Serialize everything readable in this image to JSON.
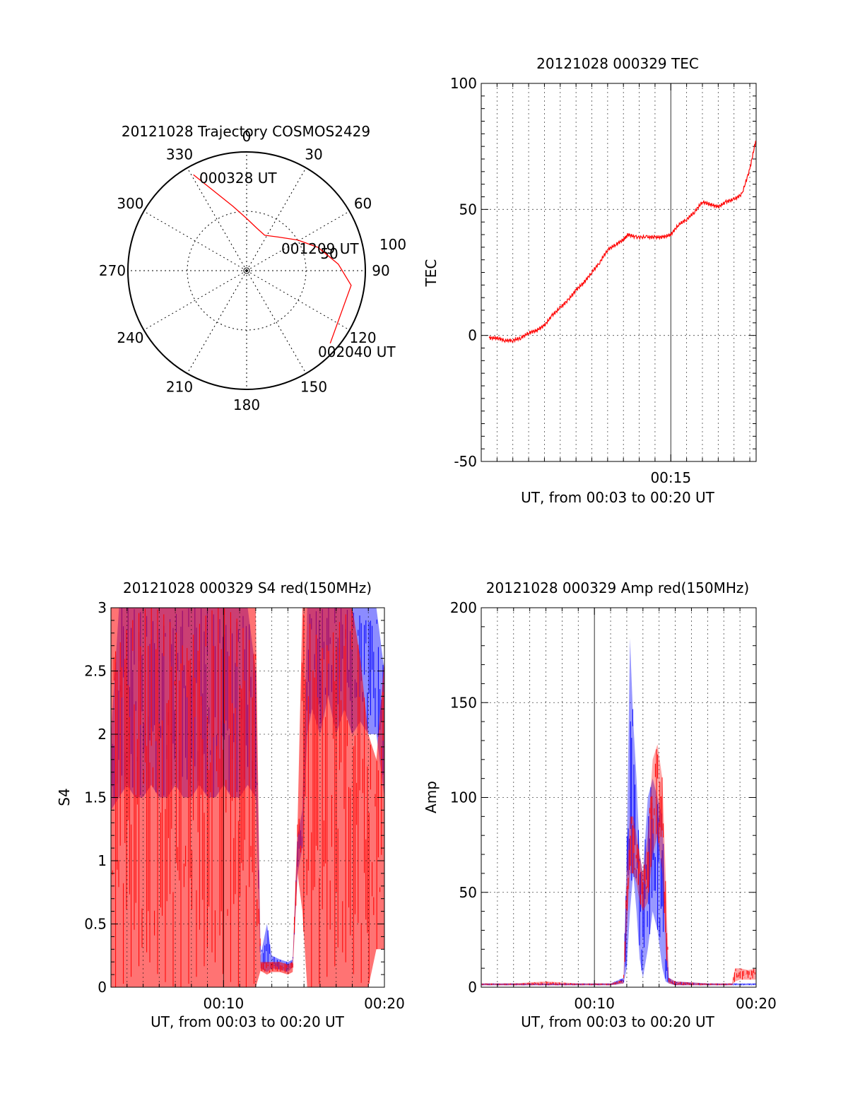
{
  "colors": {
    "primary": "#ff0000",
    "secondary": "#0000ff",
    "axis": "#000000",
    "grid": "#000000",
    "background": "#ffffff"
  },
  "chart_data": [
    {
      "id": "polar",
      "type": "scatter",
      "subtype": "polar-trajectory",
      "title": "20121028 Trajectory COSMOS2429",
      "azimuth_labels": [
        "0",
        "30",
        "60",
        "90",
        "120",
        "150",
        "180",
        "210",
        "240",
        "270",
        "300",
        "330"
      ],
      "radial_labels": [
        "50",
        "100"
      ],
      "radial_max": 100,
      "grid": true,
      "annotations": [
        "000328 UT",
        "001209 UT",
        "002040 UT"
      ],
      "series": [
        {
          "color": "#ff0000",
          "points_az_zenith": [
            [
              -29,
              105
            ],
            [
              -12,
              63
            ],
            [
              0,
              50
            ],
            [
              13,
              42
            ],
            [
              27,
              38
            ],
            [
              43,
              44
            ],
            [
              59,
              57
            ],
            [
              72,
              72
            ],
            [
              86,
              88
            ],
            [
              98,
              101
            ],
            [
              131,
              106
            ]
          ]
        }
      ]
    },
    {
      "id": "tec",
      "type": "line",
      "title": "20121028 000329 TEC",
      "xlabel": "UT, from 00:03 to 00:20 UT",
      "ylabel": "TEC",
      "xlim": [
        3,
        20.4
      ],
      "ylim": [
        -50,
        100
      ],
      "xticks": [
        {
          "value": 15,
          "label": "00:15"
        }
      ],
      "yticks": [
        {
          "value": -50,
          "label": "-50"
        },
        {
          "value": 0,
          "label": "0"
        },
        {
          "value": 50,
          "label": "50"
        },
        {
          "value": 100,
          "label": "100"
        }
      ],
      "grid": true,
      "series": [
        {
          "color": "#ff0000",
          "x": [
            3.5,
            4.0,
            4.5,
            5.0,
            5.5,
            6.0,
            6.5,
            7.0,
            7.5,
            8.0,
            8.5,
            9.0,
            9.5,
            10.0,
            10.5,
            11.0,
            11.5,
            12.0,
            12.3,
            12.8,
            13.5,
            14.0,
            14.5,
            15.0,
            15.5,
            16.0,
            16.5,
            17.0,
            17.5,
            18.0,
            18.5,
            19.0,
            19.5,
            20.0,
            20.4
          ],
          "y": [
            -1,
            -1,
            -2,
            -2,
            -1,
            1,
            2,
            4,
            8,
            11,
            14,
            18,
            21,
            25,
            29,
            34,
            36,
            38,
            40,
            39,
            39,
            39,
            39,
            40,
            44,
            46,
            49,
            53,
            52,
            51,
            53,
            54,
            56,
            66,
            78
          ]
        }
      ]
    },
    {
      "id": "s4",
      "type": "line",
      "title": "20121028 000329 S4 red(150MHz)",
      "xlabel": "UT, from 00:03 to 00:20 UT",
      "ylabel": "S4",
      "xlim": [
        3,
        20
      ],
      "ylim": [
        0,
        3
      ],
      "xticks": [
        {
          "value": 10,
          "label": "00:10"
        },
        {
          "value": 20,
          "label": "00:20"
        }
      ],
      "yticks": [
        {
          "value": 0,
          "label": "0"
        },
        {
          "value": 0.5,
          "label": "0.5"
        },
        {
          "value": 1,
          "label": "1"
        },
        {
          "value": 1.5,
          "label": "1.5"
        },
        {
          "value": 2,
          "label": "2"
        },
        {
          "value": 2.5,
          "label": "2.5"
        },
        {
          "value": 3,
          "label": "3"
        }
      ],
      "grid": true,
      "series": [
        {
          "color": "#0000ff",
          "x": [
            3.0,
            3.5,
            4.0,
            4.5,
            5.0,
            5.5,
            6.0,
            6.5,
            7.0,
            7.5,
            8.0,
            8.5,
            9.0,
            9.5,
            10.0,
            10.5,
            11.0,
            11.5,
            12.0,
            12.3,
            12.7,
            13.0,
            13.5,
            14.0,
            14.3,
            14.6,
            14.9,
            15.2,
            15.5,
            16.0,
            16.5,
            17.0,
            17.5,
            18.0,
            18.5,
            19.0,
            19.5,
            20.0
          ],
          "y_low": [
            1.4,
            1.5,
            1.6,
            1.5,
            1.5,
            1.6,
            1.5,
            1.5,
            1.6,
            1.5,
            1.5,
            1.6,
            1.5,
            1.5,
            1.6,
            1.5,
            1.5,
            1.6,
            1.5,
            0.15,
            0.12,
            0.15,
            0.14,
            0.12,
            0.16,
            0.9,
            1.1,
            2.0,
            2.2,
            2.0,
            2.3,
            2.0,
            2.2,
            2.0,
            2.1,
            2.0,
            2.0,
            1.5
          ],
          "y_high": [
            2.0,
            3.0,
            3.0,
            3.0,
            3.0,
            3.0,
            3.0,
            3.0,
            3.0,
            3.0,
            3.0,
            3.0,
            3.0,
            3.0,
            3.0,
            3.0,
            3.0,
            3.0,
            2.5,
            0.25,
            0.5,
            0.25,
            0.22,
            0.2,
            0.22,
            1.2,
            1.4,
            3.0,
            3.0,
            3.0,
            3.0,
            3.0,
            3.0,
            3.0,
            3.0,
            3.0,
            3.0,
            2.5
          ]
        },
        {
          "color": "#ff0000",
          "x": [
            3.0,
            3.5,
            4.0,
            4.5,
            5.0,
            5.5,
            6.0,
            6.5,
            7.0,
            7.5,
            8.0,
            8.5,
            9.0,
            9.5,
            10.0,
            10.5,
            11.0,
            11.5,
            12.0,
            12.3,
            12.7,
            13.0,
            13.5,
            14.0,
            14.3,
            14.6,
            14.9,
            15.2,
            15.5,
            16.0,
            16.5,
            17.0,
            17.5,
            18.0,
            18.5,
            19.0,
            19.5,
            20.0
          ],
          "y_low": [
            0,
            0,
            0,
            0,
            0,
            0,
            0,
            0,
            0,
            0,
            0,
            0,
            0,
            0,
            0,
            0,
            0,
            0,
            0,
            0.13,
            0.1,
            0.12,
            0.12,
            0.1,
            0.12,
            0.9,
            0.6,
            0,
            0,
            0,
            0,
            0,
            0,
            0,
            0,
            0,
            0.3,
            0.3
          ],
          "y_high": [
            3.0,
            3.0,
            3.0,
            3.0,
            3.0,
            3.0,
            3.0,
            3.0,
            3.0,
            3.0,
            3.0,
            3.0,
            3.0,
            3.0,
            3.0,
            3.0,
            3.0,
            3.0,
            3.0,
            0.2,
            0.2,
            0.2,
            0.2,
            0.18,
            0.2,
            1.3,
            3.0,
            3.0,
            3.0,
            3.0,
            3.0,
            3.0,
            3.0,
            3.0,
            2.6,
            2.0,
            1.8,
            2.6
          ]
        }
      ]
    },
    {
      "id": "amp",
      "type": "line",
      "title": "20121028 000329 Amp red(150MHz)",
      "xlabel": "UT, from 00:03 to 00:20 UT",
      "ylabel": "Amp",
      "xlim": [
        3,
        20
      ],
      "ylim": [
        0,
        200
      ],
      "xticks": [
        {
          "value": 10,
          "label": "00:10"
        },
        {
          "value": 20,
          "label": "00:20"
        }
      ],
      "yticks": [
        {
          "value": 0,
          "label": "0"
        },
        {
          "value": 50,
          "label": "50"
        },
        {
          "value": 100,
          "label": "100"
        },
        {
          "value": 150,
          "label": "150"
        },
        {
          "value": 200,
          "label": "200"
        }
      ],
      "grid": true,
      "series": [
        {
          "color": "#0000ff",
          "x": [
            3.0,
            5.0,
            7.0,
            9.0,
            11.0,
            11.8,
            12.0,
            12.2,
            12.4,
            12.6,
            12.8,
            13.0,
            13.3,
            13.6,
            13.9,
            14.2,
            14.4,
            14.6,
            15.0,
            17.0,
            19.0,
            20.0
          ],
          "y_low": [
            1,
            1,
            1,
            1,
            1,
            2,
            10,
            40,
            60,
            40,
            15,
            5,
            20,
            40,
            30,
            10,
            3,
            2,
            1,
            1,
            1,
            1
          ],
          "y_high": [
            2,
            2,
            2,
            2,
            2,
            5,
            70,
            184,
            140,
            110,
            70,
            60,
            100,
            110,
            100,
            90,
            40,
            5,
            3,
            2,
            2,
            2
          ]
        },
        {
          "color": "#ff0000",
          "x": [
            3.0,
            5.0,
            7.0,
            9.0,
            11.0,
            11.8,
            12.0,
            12.2,
            12.4,
            12.6,
            12.8,
            13.0,
            13.3,
            13.6,
            13.9,
            14.2,
            14.4,
            14.6,
            15.0,
            17.0,
            18.5,
            18.7,
            19.0,
            19.5,
            20.0
          ],
          "y_low": [
            1,
            1,
            1,
            1,
            1,
            2,
            30,
            60,
            60,
            55,
            45,
            40,
            45,
            70,
            80,
            60,
            20,
            2,
            1,
            1,
            1,
            3,
            4,
            4,
            4
          ],
          "y_high": [
            2,
            2,
            3,
            2,
            2,
            4,
            60,
            90,
            90,
            80,
            70,
            60,
            80,
            120,
            128,
            110,
            60,
            5,
            3,
            2,
            2,
            10,
            10,
            9,
            10
          ]
        }
      ]
    }
  ]
}
